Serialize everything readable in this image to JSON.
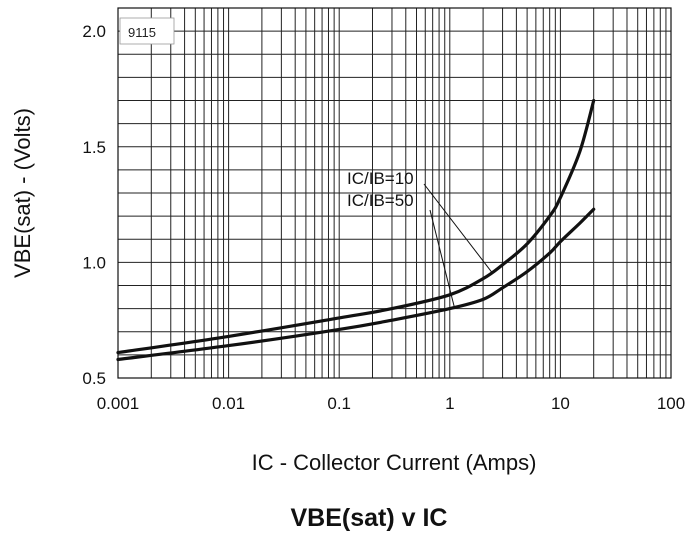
{
  "chart_data": {
    "type": "line",
    "title": "VBE(sat) v IC",
    "xlabel": "IC - Collector Current (Amps)",
    "ylabel": "VBE(sat) - (Volts)",
    "x_scale": "log",
    "xlim": [
      0.001,
      100
    ],
    "ylim": [
      0.5,
      2.1
    ],
    "x_tick_labels": [
      "0.001",
      "0.01",
      "0.1",
      "1",
      "10",
      "100"
    ],
    "y_tick_labels": [
      "0.5",
      "1.0",
      "1.5",
      "2.0"
    ],
    "grid": true,
    "figure_code": "9115",
    "series": [
      {
        "name": "IC/IB=10",
        "x": [
          0.001,
          0.01,
          0.1,
          0.3,
          1,
          2,
          3,
          5,
          8,
          10,
          15,
          20
        ],
        "y": [
          0.61,
          0.68,
          0.76,
          0.8,
          0.86,
          0.93,
          0.99,
          1.08,
          1.2,
          1.28,
          1.48,
          1.7
        ]
      },
      {
        "name": "IC/IB=50",
        "x": [
          0.001,
          0.01,
          0.1,
          0.3,
          1,
          2,
          3,
          5,
          8,
          10,
          15,
          20
        ],
        "y": [
          0.58,
          0.64,
          0.71,
          0.75,
          0.8,
          0.84,
          0.89,
          0.96,
          1.04,
          1.09,
          1.17,
          1.23
        ]
      }
    ]
  }
}
